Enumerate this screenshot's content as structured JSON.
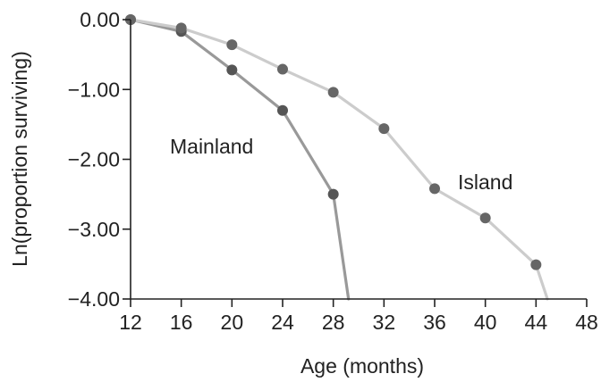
{
  "chart_data": {
    "type": "line",
    "xlabel": "Age (months)",
    "ylabel": "Ln(proportion surviving)",
    "xlim": [
      12,
      48
    ],
    "ylim": [
      -4.0,
      0.0
    ],
    "x_ticks": [
      12,
      16,
      20,
      24,
      28,
      32,
      36,
      40,
      44,
      48
    ],
    "x_tick_labels": [
      "12",
      "16",
      "20",
      "24",
      "28",
      "32",
      "36",
      "40",
      "44",
      "48"
    ],
    "y_ticks": [
      0,
      -1,
      -2,
      -3,
      -4
    ],
    "y_tick_labels": [
      "0.00",
      "−1.00",
      "−2.00",
      "−3.00",
      "−4.00"
    ],
    "grid": false,
    "series": [
      {
        "name": "Mainland",
        "color": "#999999",
        "marker_color": "#555555",
        "points": [
          {
            "x": 12,
            "y": 0.0
          },
          {
            "x": 16,
            "y": -0.17
          },
          {
            "x": 20,
            "y": -0.72
          },
          {
            "x": 24,
            "y": -1.3
          },
          {
            "x": 28,
            "y": -2.5
          }
        ],
        "line_end": {
          "x": 29.2,
          "y": -4.0
        }
      },
      {
        "name": "Island",
        "color": "#cccccc",
        "marker_color": "#666666",
        "points": [
          {
            "x": 12,
            "y": 0.0
          },
          {
            "x": 16,
            "y": -0.12
          },
          {
            "x": 20,
            "y": -0.36
          },
          {
            "x": 24,
            "y": -0.71
          },
          {
            "x": 28,
            "y": -1.04
          },
          {
            "x": 32,
            "y": -1.56
          },
          {
            "x": 36,
            "y": -2.42
          },
          {
            "x": 40,
            "y": -2.84
          },
          {
            "x": 44,
            "y": -3.51
          }
        ],
        "line_end": {
          "x": 44.9,
          "y": -4.0
        }
      }
    ]
  }
}
